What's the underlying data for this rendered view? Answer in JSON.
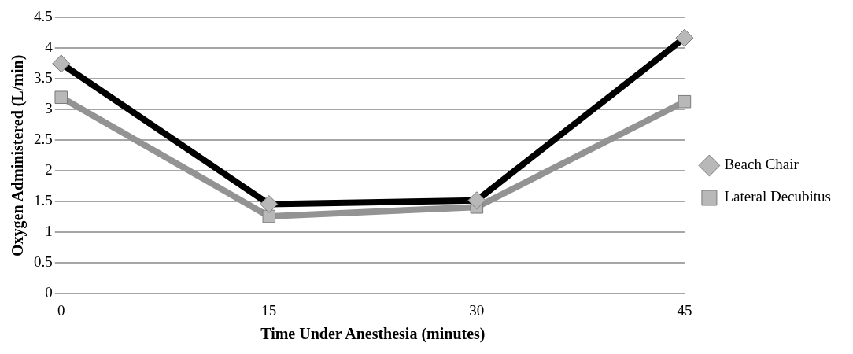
{
  "chart_data": {
    "type": "line",
    "xlabel": "Time Under Anesthesia (minutes)",
    "ylabel": "Oxygen Administered (L/min)",
    "categories": [
      "0",
      "15",
      "30",
      "45"
    ],
    "series": [
      {
        "name": "Beach Chair",
        "color": "#000000",
        "marker": "diamond",
        "values": [
          3.75,
          1.46,
          1.52,
          4.17
        ]
      },
      {
        "name": "Lateral Decubitus",
        "color": "#939393",
        "marker": "square",
        "values": [
          3.2,
          1.26,
          1.41,
          3.13
        ]
      }
    ],
    "ylim": [
      0,
      4.5
    ],
    "yticks": [
      0,
      0.5,
      1,
      1.5,
      2,
      2.5,
      3,
      3.5,
      4,
      4.5
    ],
    "grid": "y",
    "legend": "right"
  }
}
